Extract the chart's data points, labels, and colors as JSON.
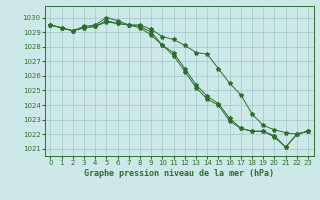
{
  "title": "Graphe pression niveau de la mer (hPa)",
  "bg_color": "#cce8e8",
  "grid_color": "#aacccc",
  "line_color": "#2d6e2d",
  "xlim": [
    -0.5,
    23.5
  ],
  "ylim": [
    1020.5,
    1030.8
  ],
  "yticks": [
    1021,
    1022,
    1023,
    1024,
    1025,
    1026,
    1027,
    1028,
    1029,
    1030
  ],
  "xticks": [
    0,
    1,
    2,
    3,
    4,
    5,
    6,
    7,
    8,
    9,
    10,
    11,
    12,
    13,
    14,
    15,
    16,
    17,
    18,
    19,
    20,
    21,
    22,
    23
  ],
  "series1_x": [
    0,
    1,
    2,
    3,
    4,
    5,
    6,
    7,
    8,
    9,
    10,
    11,
    12,
    13,
    14,
    15,
    16,
    17,
    18,
    19,
    20,
    21,
    22,
    23
  ],
  "series1_y": [
    1029.5,
    1029.3,
    1029.1,
    1029.4,
    1029.5,
    1030.0,
    1029.8,
    1029.5,
    1029.5,
    1029.2,
    1028.7,
    1028.5,
    1028.1,
    1027.6,
    1027.5,
    1026.5,
    1025.5,
    1024.7,
    1023.4,
    1022.6,
    1022.3,
    1022.1,
    1022.0,
    1022.2
  ],
  "series2_x": [
    0,
    1,
    2,
    3,
    4,
    5,
    6,
    7,
    8,
    9,
    10,
    11,
    12,
    13,
    14,
    15,
    16,
    17,
    18,
    19,
    20,
    21,
    22,
    23
  ],
  "series2_y": [
    1029.5,
    1029.3,
    1029.1,
    1029.3,
    1029.4,
    1029.8,
    1029.6,
    1029.5,
    1029.4,
    1029.0,
    1028.1,
    1027.6,
    1026.5,
    1025.4,
    1024.6,
    1024.1,
    1023.1,
    1022.4,
    1022.2,
    1022.2,
    1021.9,
    1021.1,
    1022.0,
    1022.2
  ],
  "series3_x": [
    0,
    1,
    2,
    3,
    4,
    5,
    6,
    7,
    8,
    9,
    10,
    11,
    12,
    13,
    14,
    15,
    16,
    17,
    18,
    19,
    20,
    21,
    22,
    23
  ],
  "series3_y": [
    1029.5,
    1029.3,
    1029.1,
    1029.3,
    1029.4,
    1029.7,
    1029.6,
    1029.5,
    1029.3,
    1028.8,
    1028.1,
    1027.4,
    1026.3,
    1025.2,
    1024.4,
    1024.0,
    1022.9,
    1022.4,
    1022.2,
    1022.2,
    1021.8,
    1021.1,
    1022.0,
    1022.2
  ]
}
